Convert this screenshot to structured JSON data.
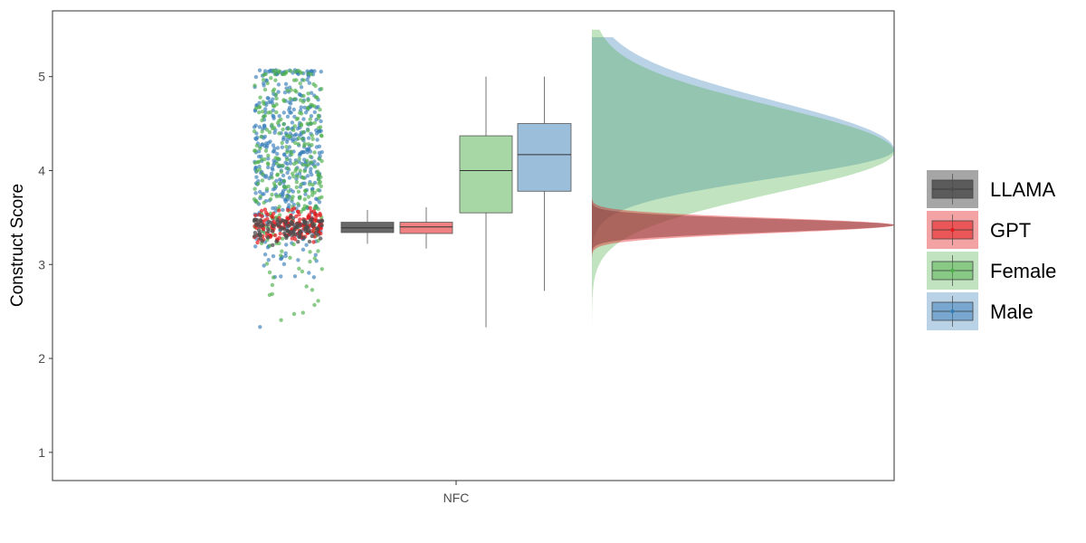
{
  "chart_data": {
    "type": "raincloud",
    "title": "",
    "xlabel": "",
    "ylabel": "Construct Score",
    "categories": [
      "NFC"
    ],
    "ylim": [
      0.7,
      5.7
    ],
    "yticks": [
      "1",
      "2",
      "3",
      "4",
      "5"
    ],
    "grid": false,
    "legend_position": "right",
    "series": [
      {
        "name": "LLAMA",
        "color": "#4d4d4d",
        "box": {
          "min": 3.22,
          "q1": 3.34,
          "median": 3.39,
          "q3": 3.45,
          "max": 3.58
        },
        "density_peak": 3.42,
        "density_range": [
          3.05,
          3.77
        ]
      },
      {
        "name": "GPT",
        "color": "#e41a1c",
        "box": {
          "min": 3.17,
          "q1": 3.33,
          "median": 3.4,
          "q3": 3.45,
          "max": 3.61
        },
        "density_peak": 3.42,
        "density_range": [
          3.05,
          3.75
        ]
      },
      {
        "name": "Female",
        "color": "#4daf4a",
        "box": {
          "min": 2.33,
          "q1": 3.55,
          "median": 4.0,
          "q3": 4.37,
          "max": 5.0
        },
        "density_peak": 4.2,
        "density_range": [
          1.5,
          5.5
        ]
      },
      {
        "name": "Male",
        "color": "#377eb8",
        "box": {
          "min": 2.72,
          "q1": 3.78,
          "median": 4.17,
          "q3": 4.5,
          "max": 5.0
        },
        "density_peak": 4.22,
        "density_range": [
          0.92,
          5.42
        ]
      }
    ]
  }
}
